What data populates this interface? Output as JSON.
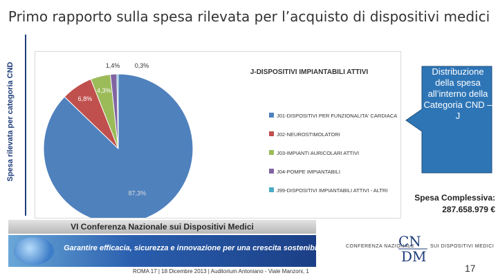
{
  "slide": {
    "title": "Primo rapporto sulla spesa rilevata per l’acquisto di dispositivi medici",
    "side_label": "Spesa rilevata per categoria CND",
    "page_number": "17"
  },
  "callout": {
    "text": "Distribuzione della spesa all’interno della Categoria CND – J",
    "fill_color": "#2e75b6"
  },
  "spesa": {
    "label": "Spesa Complessiva:",
    "value": "287.658.979 €"
  },
  "banner": {
    "top_text": "VI Conferenza Nazionale sui Dispositivi Medici",
    "tagline": "Garantire efficacia, sicurezza e innovazione per una crescita sostenibile",
    "bottom_text": "ROMA 17 | 18 Dicembre 2013 | Auditorium Antoniano - Viale Manzoni, 1"
  },
  "logo": {
    "left_text": "CONFERENZA NAZIONALE",
    "right_text": "SUI DISPOSITIVI MEDICI"
  },
  "chart_data": {
    "type": "pie",
    "title": "J-DISPOSITIVI IMPIANTABILI ATTIVI",
    "legend_position": "right",
    "slices": [
      {
        "name": "J01-DISPOSITIVI PER FUNZIONALITA' CARDIACA",
        "value": 87.3,
        "label": "87,3%",
        "color": "#4f81bd"
      },
      {
        "name": "J02-NEUROSTIMOLATORI",
        "value": 6.8,
        "label": "6,8%",
        "color": "#c0504d"
      },
      {
        "name": "J03-IMPIANTI AURICOLARI ATTIVI",
        "value": 4.3,
        "label": "4,3%",
        "color": "#9bbb59"
      },
      {
        "name": "J04-POMPE IMPIANTABILI",
        "value": 1.4,
        "label": "1,4%",
        "color": "#8064a2"
      },
      {
        "name": "J99-DISPOSITIVI IMPIANTABILI ATTIVI - ALTRI",
        "value": 0.3,
        "label": "0,3%",
        "color": "#4bacc6"
      }
    ]
  }
}
